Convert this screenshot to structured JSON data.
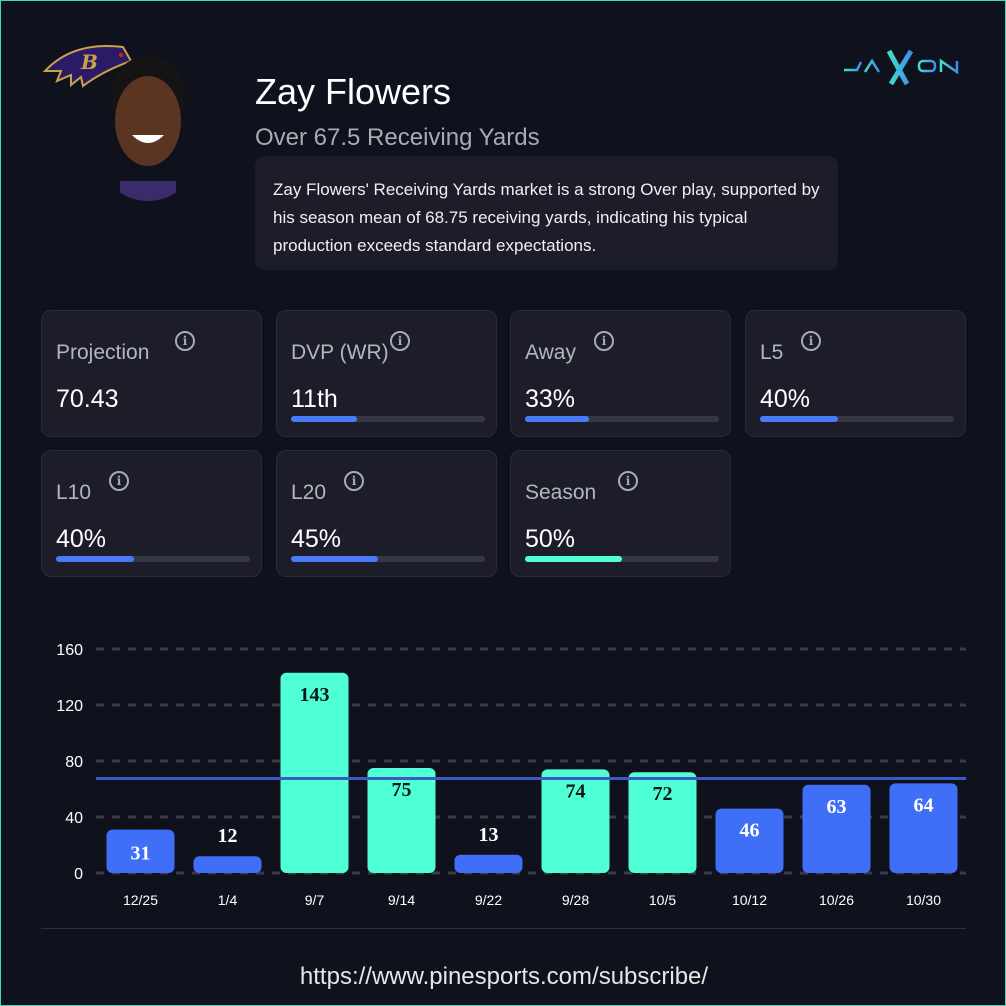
{
  "player": {
    "name": "Zay Flowers",
    "market": "Over 67.5 Receiving Yards",
    "summary": "Zay Flowers' Receiving Yards market is a strong Over play, supported by his season mean of 68.75 receiving yards, indicating his typical production exceeds standard expectations."
  },
  "brand": {
    "logo_text": "JAXON"
  },
  "team": {
    "logo": "baltimore-ravens-logo"
  },
  "stats": [
    {
      "label": "Projection",
      "value": "70.43",
      "bar": null
    },
    {
      "label": "DVP (WR)",
      "value": "11th",
      "bar": 0.34
    },
    {
      "label": "Away",
      "value": "33%",
      "bar": 0.33
    },
    {
      "label": "L5",
      "value": "40%",
      "bar": 0.4
    },
    {
      "label": "L10",
      "value": "40%",
      "bar": 0.4
    },
    {
      "label": "L20",
      "value": "45%",
      "bar": 0.45
    },
    {
      "label": "Season",
      "value": "50%",
      "bar": 0.5,
      "color": "#4fffd6"
    }
  ],
  "colors": {
    "over": "#4fffd6",
    "under": "#3f6ff7",
    "line": "#3b5bc4",
    "accent": "#4a7af7"
  },
  "chart_data": {
    "type": "bar",
    "categories": [
      "12/25",
      "1/4",
      "9/7",
      "9/14",
      "9/22",
      "9/28",
      "10/5",
      "10/12",
      "10/26",
      "10/30"
    ],
    "values": [
      31,
      12,
      143,
      75,
      13,
      74,
      72,
      46,
      63,
      64
    ],
    "threshold": 67.5,
    "ylim": [
      0,
      160
    ],
    "yticks": [
      0,
      40,
      80,
      120,
      160
    ],
    "grid": true
  },
  "footer": {
    "url": "https://www.pinesports.com/subscribe/"
  }
}
